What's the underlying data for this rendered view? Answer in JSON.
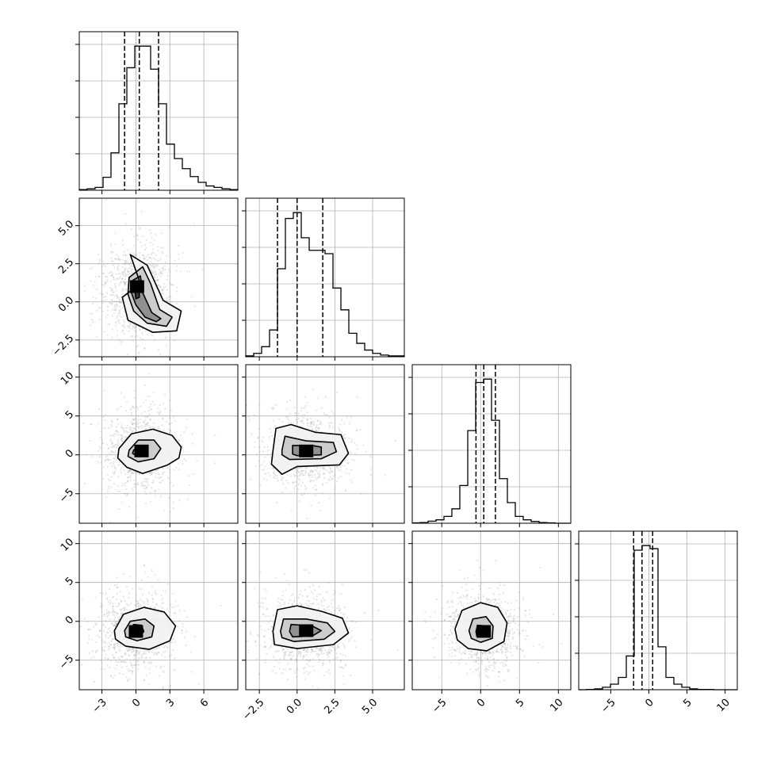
{
  "chart_data": {
    "type": "corner",
    "grid": true,
    "variables": [
      {
        "index": 0,
        "xlim": [
          -5,
          9
        ],
        "xticks": [
          -3,
          0,
          3,
          6
        ],
        "xtick_labels": [
          "−3",
          "0",
          "3",
          "6"
        ],
        "quantiles": [
          -1.0,
          0.3,
          2.0
        ]
      },
      {
        "index": 1,
        "xlim": [
          -3.4,
          7.1
        ],
        "xticks": [
          -2.5,
          0.0,
          2.5,
          5.0
        ],
        "xtick_labels": [
          "−2.5",
          "0.0",
          "2.5",
          "5.0"
        ],
        "quantiles": [
          -1.3,
          0.0,
          1.7
        ]
      },
      {
        "index": 2,
        "xlim": [
          -8.8,
          11.6
        ],
        "xticks": [
          -5,
          0,
          5,
          10
        ],
        "xtick_labels": [
          "−5",
          "0",
          "5",
          "10"
        ],
        "quantiles": [
          -0.6,
          0.4,
          1.9
        ]
      },
      {
        "index": 3,
        "xlim": [
          -9.2,
          11.6
        ],
        "xticks": [
          -5,
          0,
          5,
          10
        ],
        "xtick_labels": [
          "−5",
          "0",
          "5",
          "10"
        ],
        "quantiles": [
          -2.0,
          -0.9,
          0.5
        ]
      }
    ],
    "row_ytick_labels": [
      {
        "row": 1,
        "ylim": [
          -3.6,
          6.8
        ],
        "yticks": [
          -2.5,
          0.0,
          2.5,
          5.0
        ],
        "labels": [
          "−2.5",
          "0.0",
          "2.5",
          "5.0"
        ]
      },
      {
        "row": 2,
        "ylim": [
          -8.8,
          11.6
        ],
        "yticks": [
          -5,
          0,
          5,
          10
        ],
        "labels": [
          "−5",
          "0",
          "5",
          "10"
        ]
      },
      {
        "row": 3,
        "ylim": [
          -8.8,
          11.6
        ],
        "yticks": [
          -5,
          0,
          5,
          10
        ],
        "labels": [
          "−5",
          "0",
          "5",
          "10"
        ]
      }
    ],
    "histograms": [
      {
        "variable": 0,
        "bin_edges": [
          -5,
          -4.3,
          -3.6,
          -2.9,
          -2.2,
          -1.5,
          -0.8,
          -0.1,
          0.6,
          1.3,
          2.0,
          2.7,
          3.4,
          4.1,
          4.8,
          5.5,
          6.2,
          6.9,
          7.6,
          8.3,
          9.0
        ],
        "counts": [
          1,
          2,
          4,
          18,
          52,
          120,
          170,
          200,
          200,
          168,
          120,
          64,
          44,
          30,
          19,
          11,
          6,
          4,
          2,
          1
        ]
      },
      {
        "variable": 1,
        "bin_edges": [
          -3.4,
          -2.875,
          -2.35,
          -1.825,
          -1.3,
          -0.775,
          -0.25,
          0.275,
          0.8,
          1.325,
          1.85,
          2.375,
          2.9,
          3.425,
          3.95,
          4.475,
          5.0,
          5.525,
          6.05,
          6.575,
          7.1
        ],
        "counts": [
          1,
          4,
          12,
          32,
          105,
          165,
          172,
          142,
          127,
          127,
          123,
          82,
          56,
          28,
          16,
          8,
          4,
          2,
          1,
          1
        ]
      },
      {
        "variable": 2,
        "bin_edges": [
          -8.8,
          -7.78,
          -6.76,
          -5.74,
          -4.72,
          -3.7,
          -2.68,
          -1.66,
          -0.64,
          0.38,
          1.4,
          2.42,
          3.44,
          4.46,
          5.48,
          6.5,
          7.52,
          8.54,
          9.56,
          10.58,
          11.6
        ],
        "counts": [
          1,
          2,
          6,
          10,
          20,
          42,
          110,
          270,
          410,
          420,
          300,
          130,
          60,
          20,
          10,
          5,
          2,
          1,
          0,
          0
        ]
      },
      {
        "variable": 3,
        "bin_edges": [
          -9.2,
          -8.16,
          -7.12,
          -6.08,
          -5.04,
          -4.0,
          -2.96,
          -1.92,
          -0.88,
          0.16,
          1.2,
          2.24,
          3.28,
          4.32,
          5.36,
          6.4,
          7.44,
          8.48,
          9.52,
          10.56,
          11.6
        ],
        "counts": [
          0,
          1,
          3,
          8,
          18,
          40,
          110,
          455,
          470,
          460,
          140,
          40,
          18,
          8,
          3,
          1,
          1,
          0,
          0,
          0
        ]
      }
    ],
    "pairs": [
      {
        "row": 1,
        "col": 0,
        "center": [
          0.1,
          0.8
        ],
        "spread": [
          1.6,
          1.5
        ],
        "levels": [
          [
            [
              0.4,
              1.2
            ],
            [
              -0.5,
              3.1
            ],
            [
              1.0,
              2.4
            ],
            [
              2.4,
              0.1
            ],
            [
              4.0,
              -0.6
            ],
            [
              3.6,
              -1.9
            ],
            [
              1.5,
              -2.0
            ],
            [
              -0.7,
              -1.2
            ],
            [
              -1.2,
              0.3
            ]
          ],
          [
            [
              -0.6,
              1.6
            ],
            [
              0.6,
              2.3
            ],
            [
              1.3,
              1.2
            ],
            [
              2.1,
              -0.5
            ],
            [
              3.2,
              -1.0
            ],
            [
              2.7,
              -1.6
            ],
            [
              1.0,
              -1.4
            ],
            [
              -0.2,
              -0.6
            ],
            [
              -0.7,
              0.5
            ]
          ],
          [
            [
              -0.3,
              1.4
            ],
            [
              0.4,
              1.7
            ],
            [
              0.6,
              0.6
            ],
            [
              1.4,
              -0.7
            ],
            [
              2.2,
              -1.1
            ],
            [
              1.8,
              -1.3
            ],
            [
              0.8,
              -1.0
            ],
            [
              0.0,
              -0.2
            ],
            [
              -0.4,
              0.6
            ]
          ],
          [
            [
              0.0,
              1.2
            ],
            [
              0.3,
              1.1
            ],
            [
              0.3,
              0.3
            ],
            [
              0.0,
              0.2
            ],
            [
              -0.1,
              0.8
            ]
          ]
        ]
      },
      {
        "row": 2,
        "col": 0,
        "center": [
          0.5,
          0.5
        ],
        "spread": [
          1.7,
          2.6
        ],
        "levels": [
          [
            [
              -1.5,
              0.8
            ],
            [
              -0.4,
              2.7
            ],
            [
              1.5,
              3.3
            ],
            [
              3.2,
              2.5
            ],
            [
              4.0,
              1.0
            ],
            [
              3.8,
              -0.4
            ],
            [
              2.8,
              -1.3
            ],
            [
              0.6,
              -2.4
            ],
            [
              -0.8,
              -1.6
            ],
            [
              -1.6,
              -0.4
            ]
          ],
          [
            [
              -0.6,
              0.6
            ],
            [
              0.2,
              1.9
            ],
            [
              1.6,
              1.9
            ],
            [
              2.2,
              0.8
            ],
            [
              1.6,
              -0.5
            ],
            [
              0.2,
              -0.9
            ],
            [
              -0.7,
              -0.2
            ]
          ],
          [
            [
              -0.2,
              0.6
            ],
            [
              0.4,
              1.2
            ],
            [
              1.0,
              0.8
            ],
            [
              0.8,
              -0.1
            ],
            [
              0.1,
              -0.2
            ],
            [
              -0.3,
              0.2
            ]
          ]
        ]
      },
      {
        "row": 3,
        "col": 0,
        "center": [
          0.0,
          -1.3
        ],
        "spread": [
          1.7,
          2.5
        ],
        "levels": [
          [
            [
              -1.9,
              -1.2
            ],
            [
              -1.1,
              0.9
            ],
            [
              0.7,
              1.8
            ],
            [
              2.5,
              1.2
            ],
            [
              3.5,
              -0.6
            ],
            [
              3.0,
              -2.5
            ],
            [
              1.2,
              -3.6
            ],
            [
              -0.9,
              -3.2
            ],
            [
              -1.8,
              -2.3
            ]
          ],
          [
            [
              -1.0,
              -1.2
            ],
            [
              -0.5,
              0.0
            ],
            [
              0.8,
              0.3
            ],
            [
              1.6,
              -0.6
            ],
            [
              1.4,
              -2.0
            ],
            [
              0.1,
              -2.5
            ],
            [
              -0.9,
              -2.0
            ]
          ],
          [
            [
              -0.5,
              -1.2
            ],
            [
              -0.2,
              -0.4
            ],
            [
              0.5,
              -0.5
            ],
            [
              0.7,
              -1.3
            ],
            [
              0.3,
              -2.0
            ],
            [
              -0.4,
              -1.8
            ]
          ]
        ]
      },
      {
        "row": 2,
        "col": 1,
        "center": [
          0.6,
          0.5
        ],
        "spread": [
          1.4,
          2.5
        ],
        "levels": [
          [
            [
              -1.6,
              0.5
            ],
            [
              -1.4,
              3.4
            ],
            [
              -0.4,
              3.9
            ],
            [
              1.2,
              2.9
            ],
            [
              2.9,
              2.6
            ],
            [
              3.4,
              0.2
            ],
            [
              2.8,
              -1.3
            ],
            [
              0.0,
              -1.5
            ],
            [
              -1.0,
              -2.5
            ],
            [
              -1.7,
              -1.2
            ]
          ],
          [
            [
              -1.0,
              0.6
            ],
            [
              -0.8,
              2.4
            ],
            [
              0.6,
              1.8
            ],
            [
              2.4,
              1.6
            ],
            [
              2.6,
              0.4
            ],
            [
              1.6,
              -0.5
            ],
            [
              -0.5,
              -0.6
            ],
            [
              -1.0,
              0.0
            ]
          ],
          [
            [
              -0.3,
              0.5
            ],
            [
              -0.3,
              1.2
            ],
            [
              1.0,
              1.2
            ],
            [
              1.6,
              1.0
            ],
            [
              1.6,
              0.0
            ],
            [
              0.0,
              -0.1
            ],
            [
              -0.3,
              0.1
            ]
          ]
        ]
      },
      {
        "row": 3,
        "col": 1,
        "center": [
          0.6,
          -1.2
        ],
        "spread": [
          1.4,
          2.4
        ],
        "levels": [
          [
            [
              -1.6,
              -1.3
            ],
            [
              -1.3,
              1.5
            ],
            [
              0.0,
              2.0
            ],
            [
              1.6,
              1.3
            ],
            [
              3.0,
              0.4
            ],
            [
              3.4,
              -1.5
            ],
            [
              2.4,
              -3.0
            ],
            [
              0.0,
              -3.5
            ],
            [
              -1.5,
              -3.0
            ]
          ],
          [
            [
              -1.1,
              -1.3
            ],
            [
              -0.9,
              0.3
            ],
            [
              0.6,
              0.3
            ],
            [
              2.0,
              -0.2
            ],
            [
              2.5,
              -1.3
            ],
            [
              1.8,
              -2.3
            ],
            [
              -0.2,
              -2.6
            ],
            [
              -1.0,
              -2.1
            ]
          ],
          [
            [
              -0.5,
              -1.3
            ],
            [
              -0.4,
              -0.4
            ],
            [
              1.0,
              -0.6
            ],
            [
              1.6,
              -1.2
            ],
            [
              1.0,
              -1.9
            ],
            [
              -0.3,
              -2.0
            ]
          ]
        ]
      },
      {
        "row": 3,
        "col": 2,
        "center": [
          0.4,
          -1.3
        ],
        "spread": [
          2.3,
          2.4
        ],
        "levels": [
          [
            [
              -3.3,
              -1.0
            ],
            [
              -2.4,
              1.4
            ],
            [
              0.0,
              2.4
            ],
            [
              2.2,
              1.8
            ],
            [
              3.4,
              -0.2
            ],
            [
              3.0,
              -2.6
            ],
            [
              0.8,
              -3.8
            ],
            [
              -1.6,
              -3.5
            ],
            [
              -3.0,
              -2.4
            ]
          ],
          [
            [
              -1.5,
              -1.2
            ],
            [
              -1.0,
              0.3
            ],
            [
              0.7,
              0.6
            ],
            [
              1.6,
              -0.6
            ],
            [
              1.5,
              -2.2
            ],
            [
              0.0,
              -2.7
            ],
            [
              -1.2,
              -2.2
            ]
          ],
          [
            [
              -0.6,
              -1.3
            ],
            [
              -0.4,
              -0.5
            ],
            [
              0.8,
              -0.6
            ],
            [
              1.0,
              -1.5
            ],
            [
              0.5,
              -2.0
            ],
            [
              -0.5,
              -1.9
            ]
          ]
        ]
      }
    ]
  }
}
